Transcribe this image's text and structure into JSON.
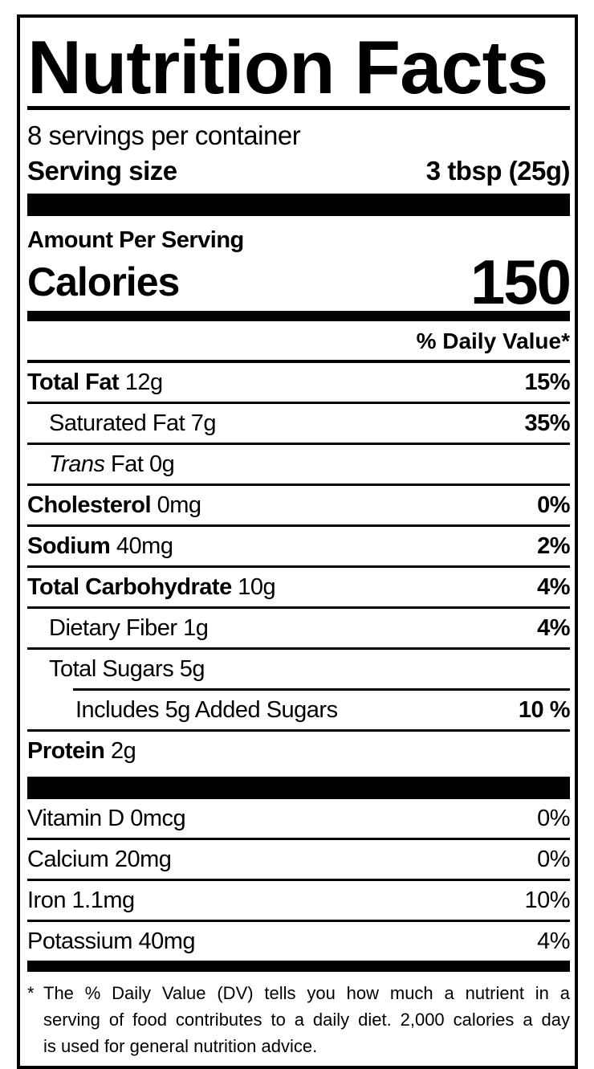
{
  "colors": {
    "ink": "#000000",
    "background": "#ffffff"
  },
  "header": {
    "title": "Nutrition Facts",
    "servings_per_container": "8 servings per container",
    "serving_size_label": "Serving size",
    "serving_size_value": "3 tbsp (25g)"
  },
  "calories": {
    "amount_per_serving_label": "Amount Per Serving",
    "label": "Calories",
    "value": "150"
  },
  "daily_value_header": "% Daily Value*",
  "nutrients": [
    {
      "name": "Total Fat",
      "amount": "12g",
      "dv": "15%"
    },
    {
      "name": "Saturated Fat",
      "amount": "7g",
      "dv": "35%"
    },
    {
      "name_italic": "Trans",
      "name": "Fat",
      "amount": "0g",
      "dv": ""
    },
    {
      "name": "Cholesterol",
      "amount": "0mg",
      "dv": "0%"
    },
    {
      "name": "Sodium",
      "amount": "40mg",
      "dv": "2%"
    },
    {
      "name": "Total Carbohydrate",
      "amount": "10g",
      "dv": "4%"
    },
    {
      "name": "Dietary Fiber",
      "amount": "1g",
      "dv": "4%"
    },
    {
      "name": "Total Sugars",
      "amount": "5g",
      "dv": ""
    },
    {
      "name": "Includes 5g Added Sugars",
      "amount": "",
      "dv": "10 %"
    },
    {
      "name": "Protein",
      "amount": "2g",
      "dv": ""
    }
  ],
  "vitamins": [
    {
      "name": "Vitamin D",
      "amount": "0mcg",
      "dv": "0%"
    },
    {
      "name": "Calcium",
      "amount": "20mg",
      "dv": "0%"
    },
    {
      "name": "Iron",
      "amount": "1.1mg",
      "dv": "10%"
    },
    {
      "name": "Potassium",
      "amount": "40mg",
      "dv": "4%"
    }
  ],
  "footnote": {
    "asterisk": "*",
    "lines": [
      "The % Daily Value (DV) tells you how much a nutrient in a",
      "serving of food contributes to a daily diet. 2,000 calories a day",
      "is used for general nutrition advice."
    ]
  }
}
